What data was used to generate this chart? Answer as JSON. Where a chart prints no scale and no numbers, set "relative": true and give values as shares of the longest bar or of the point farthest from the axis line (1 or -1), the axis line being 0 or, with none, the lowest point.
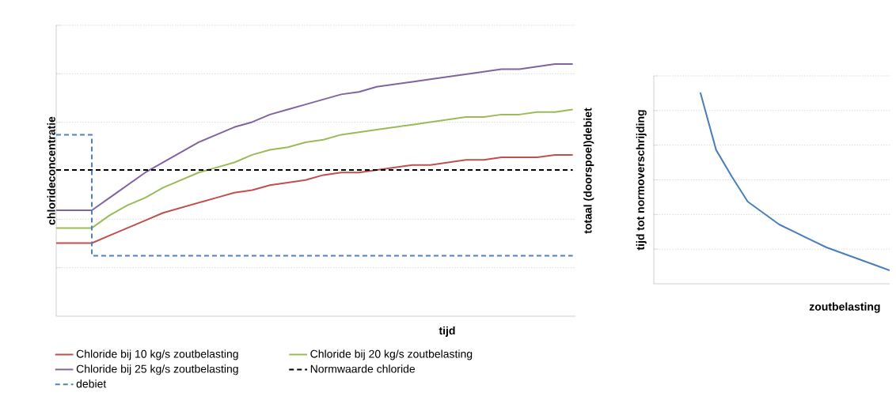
{
  "chart_data": [
    {
      "type": "line",
      "relative": true,
      "xlabel": "tijd",
      "ylabel": "chlorideconcentratie",
      "y2label": "totaal (doorspoel)debiet",
      "grid": "y",
      "legend": "bottom",
      "categories": [
        null,
        null,
        null,
        null,
        null,
        null,
        null,
        null,
        null,
        null,
        null,
        null,
        null,
        null,
        null,
        null,
        null,
        null,
        null,
        null,
        null,
        null,
        null,
        null,
        null,
        null,
        null,
        null,
        null,
        null
      ],
      "series": [
        {
          "name": "Chloride bij 10 kg/s zoutbelasting",
          "color": "#c0504d",
          "values": [
            0.29,
            0.29,
            0.29,
            0.32,
            0.35,
            0.38,
            0.41,
            0.43,
            0.45,
            0.47,
            0.49,
            0.5,
            0.52,
            0.53,
            0.54,
            0.56,
            0.57,
            0.57,
            0.58,
            0.59,
            0.6,
            0.6,
            0.61,
            0.62,
            0.62,
            0.63,
            0.63,
            0.63,
            0.64,
            0.64
          ]
        },
        {
          "name": "Chloride bij 20 kg/s zoutbelasting",
          "color": "#9bbb59",
          "values": [
            0.35,
            0.35,
            0.35,
            0.4,
            0.44,
            0.47,
            0.51,
            0.54,
            0.57,
            0.59,
            0.61,
            0.64,
            0.66,
            0.67,
            0.69,
            0.7,
            0.72,
            0.73,
            0.74,
            0.75,
            0.76,
            0.77,
            0.78,
            0.79,
            0.79,
            0.8,
            0.8,
            0.81,
            0.81,
            0.82
          ]
        },
        {
          "name": "Chloride bij 25 kg/s zoutbelasting",
          "color": "#8064a2",
          "values": [
            0.42,
            0.42,
            0.42,
            0.47,
            0.52,
            0.57,
            0.61,
            0.65,
            0.69,
            0.72,
            0.75,
            0.77,
            0.8,
            0.82,
            0.84,
            0.86,
            0.88,
            0.89,
            0.91,
            0.92,
            0.93,
            0.94,
            0.95,
            0.96,
            0.97,
            0.98,
            0.98,
            0.99,
            1.0,
            1.0
          ]
        },
        {
          "name": "Normwaarde chloride",
          "color": "#000000",
          "line_style": "dashed",
          "values": [
            0.58,
            0.58,
            0.58,
            0.58,
            0.58,
            0.58,
            0.58,
            0.58,
            0.58,
            0.58,
            0.58,
            0.58,
            0.58,
            0.58,
            0.58,
            0.58,
            0.58,
            0.58,
            0.58,
            0.58,
            0.58,
            0.58,
            0.58,
            0.58,
            0.58,
            0.58,
            0.58,
            0.58,
            0.58,
            0.58
          ]
        },
        {
          "name": "debiet",
          "type": "step",
          "color": "#4f81bd",
          "line_style": "dashed",
          "values": [
            0.72,
            0.72,
            0.24,
            0.24,
            0.24,
            0.24,
            0.24,
            0.24,
            0.24,
            0.24,
            0.24,
            0.24,
            0.24,
            0.24,
            0.24,
            0.24,
            0.24,
            0.24,
            0.24,
            0.24,
            0.24,
            0.24,
            0.24,
            0.24,
            0.24,
            0.24,
            0.24,
            0.24,
            0.24,
            0.24
          ]
        }
      ]
    },
    {
      "type": "line",
      "relative": true,
      "xlabel": "zoutbelasting",
      "ylabel": "tijd tot normoverschrijding",
      "grid": "y",
      "categories": [
        null,
        null,
        null,
        null,
        null,
        null,
        null,
        null,
        null,
        null,
        null,
        null,
        null
      ],
      "series": [
        {
          "color": "#4a7ebb",
          "values": [
            1.0,
            0.7,
            0.56,
            0.43,
            0.37,
            0.31,
            0.27,
            0.23,
            0.19,
            0.16,
            0.13,
            0.1,
            0.07
          ]
        }
      ]
    }
  ]
}
